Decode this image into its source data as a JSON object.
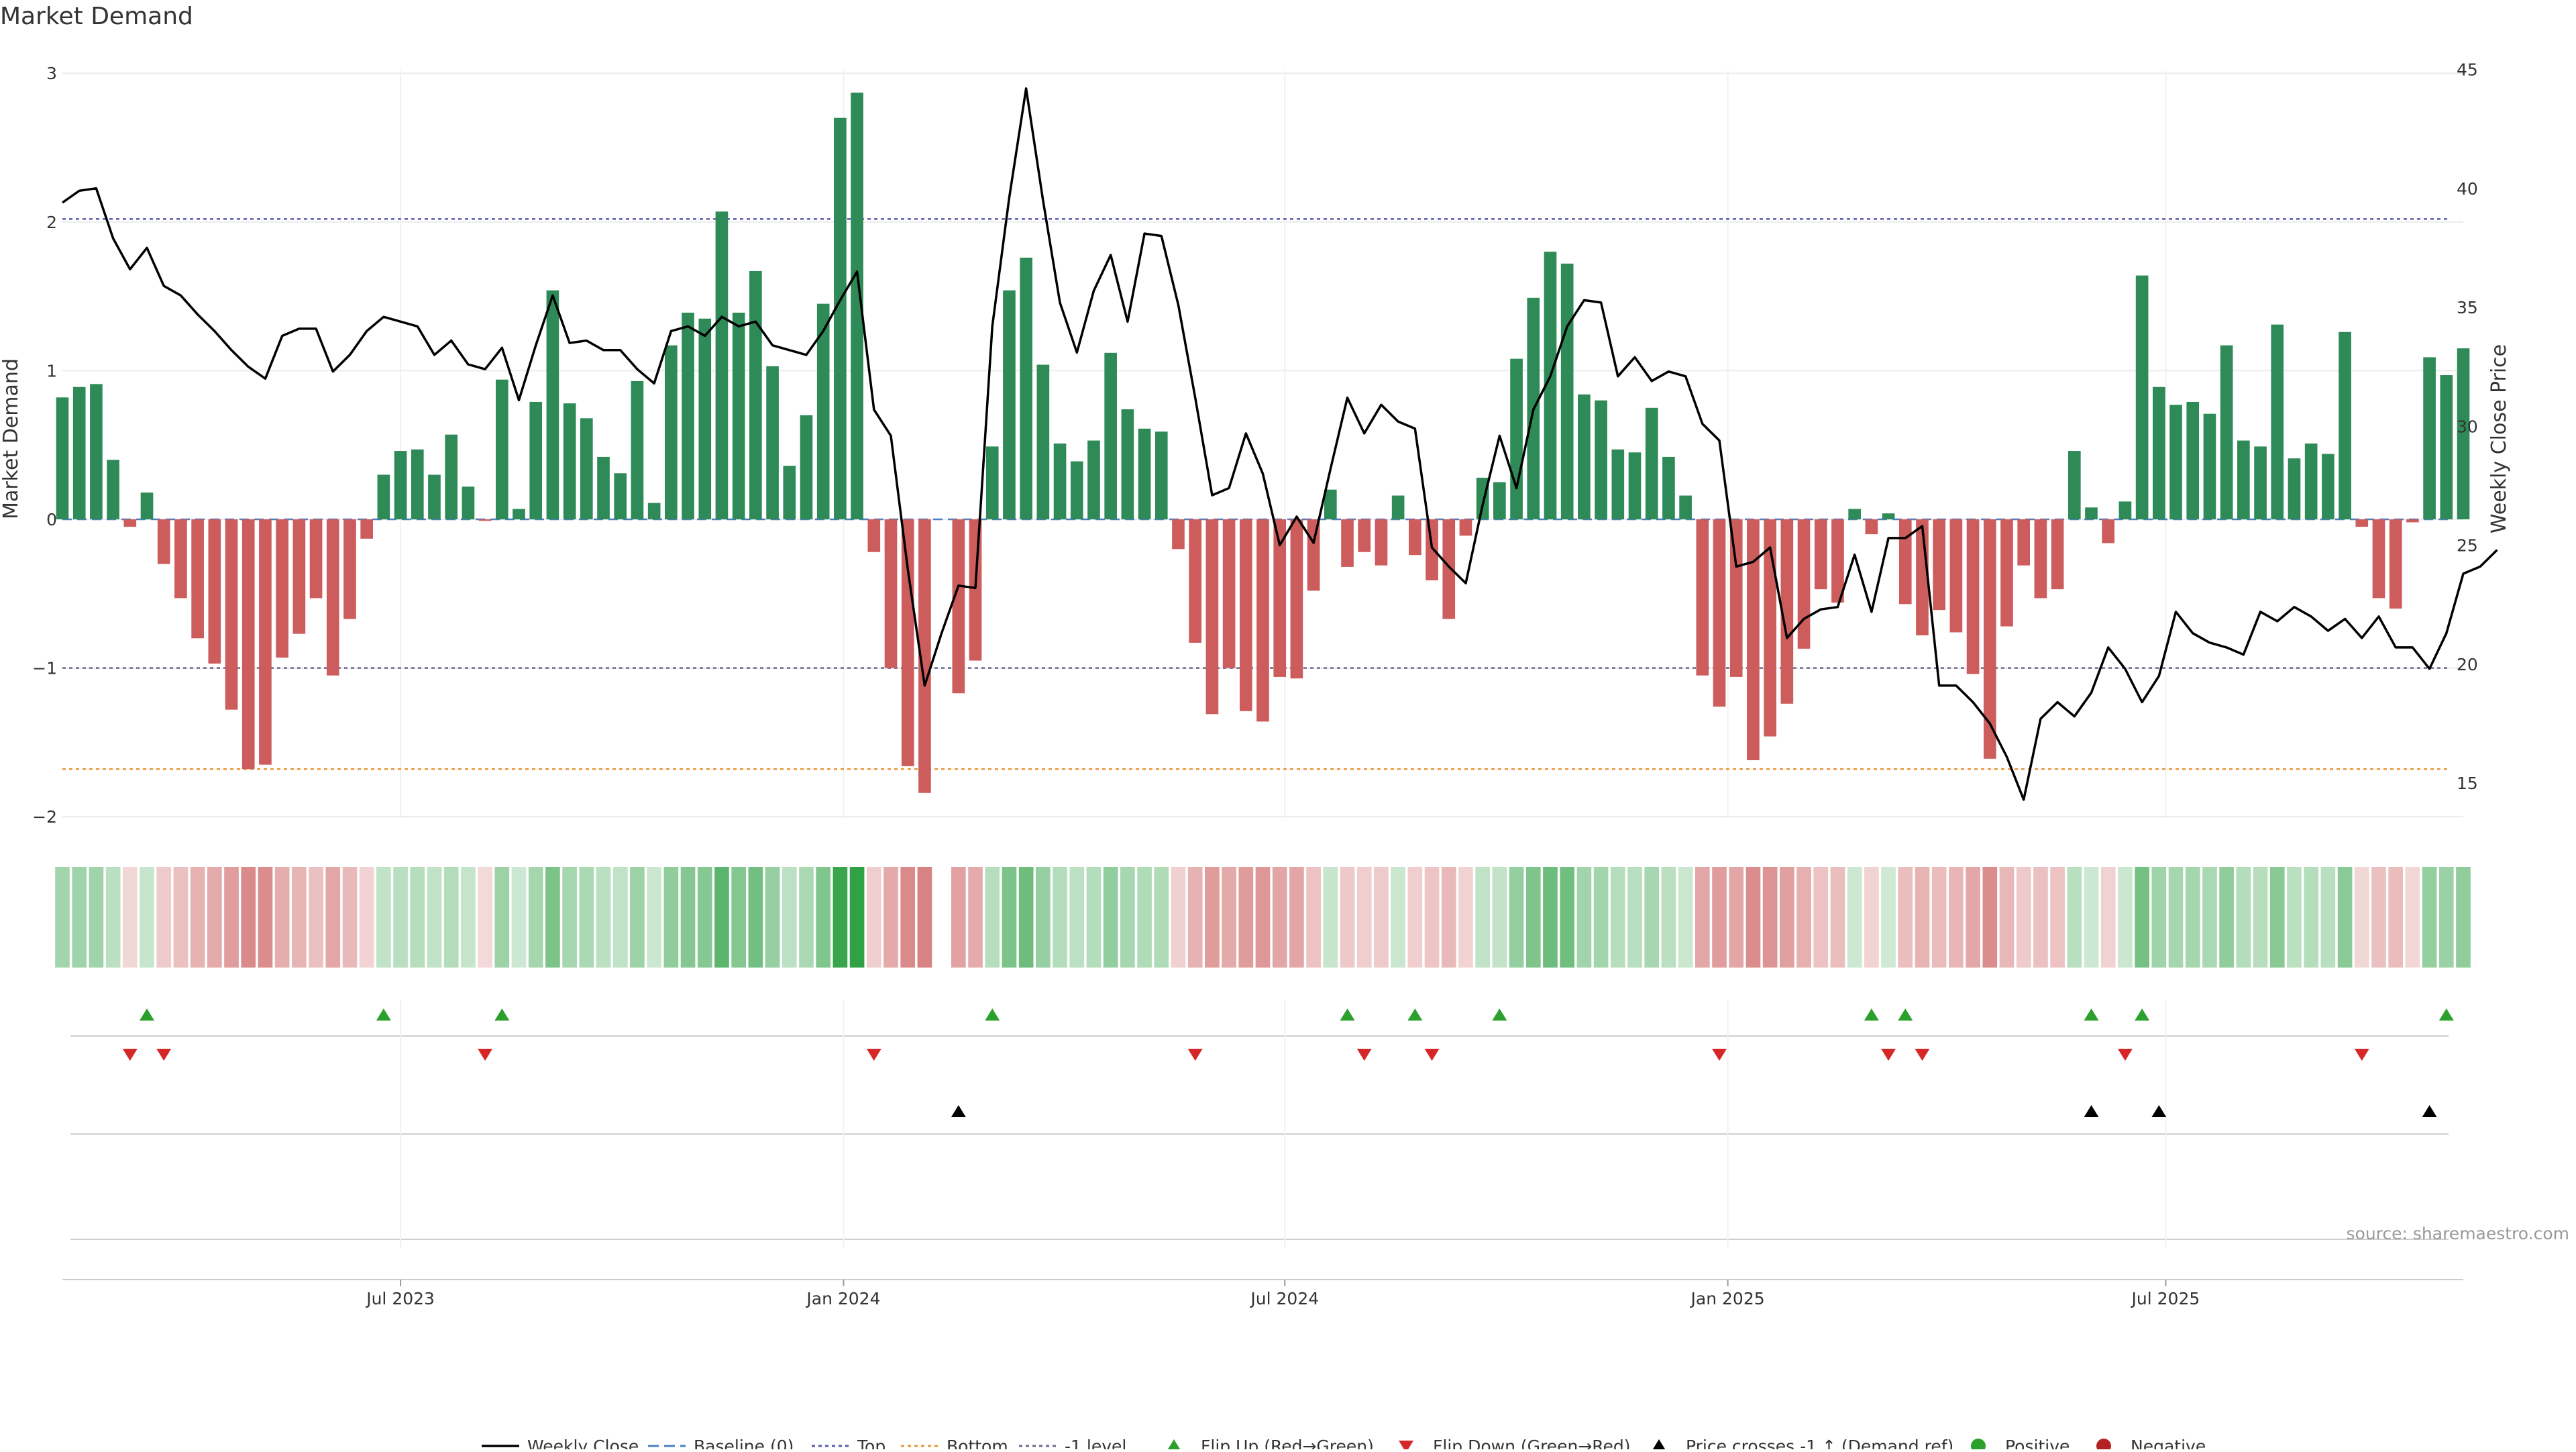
{
  "title": "Market Demand",
  "source": "source: sharemaestro.com",
  "colors": {
    "pos_bar": "#2e8b57",
    "neg_bar": "#cd5c5c",
    "close_line": "#000000",
    "top_line": "#5a5ab4",
    "bottom_line": "#e8953a",
    "minus1_line": "#6a6a90",
    "baseline": "#4a7fc1",
    "flip_up": "#2ca02c",
    "flip_down": "#d62728",
    "cross": "#000000",
    "positive": "#2ca02c",
    "negative": "#b22222"
  },
  "chart_data": {
    "type": "bar",
    "title": "Market Demand",
    "ylabel": "Market Demand",
    "y2label": "Weekly Close Price",
    "ylim": [
      -2,
      3
    ],
    "y2lim": [
      15,
      45
    ],
    "yticks": [
      -2,
      -1,
      0,
      1,
      2,
      3
    ],
    "y2ticks": [
      15,
      20,
      25,
      30,
      35,
      40,
      45
    ],
    "yticklabels": [
      "−2",
      "−1",
      "0",
      "1",
      "2",
      "3"
    ],
    "y2ticklabels": [
      "15",
      "20",
      "25",
      "30",
      "35",
      "40",
      "45"
    ],
    "top_level": 2.02,
    "bottom_level": -1.68,
    "minus1_level": -1,
    "x_ticks": [
      {
        "label": "Jul 2023",
        "week": 20
      },
      {
        "label": "Jan 2024",
        "week": 46.2
      },
      {
        "label": "Jul 2024",
        "week": 72.3
      },
      {
        "label": "Jan 2025",
        "week": 98.5
      },
      {
        "label": "Jul 2025",
        "week": 124.4
      }
    ],
    "demand": [
      0.82,
      0.89,
      0.91,
      0.4,
      -0.05,
      0.18,
      -0.3,
      -0.53,
      -0.8,
      -0.97,
      -1.28,
      -1.68,
      -1.65,
      -0.93,
      -0.77,
      -0.53,
      -1.05,
      -0.67,
      -0.13,
      0.3,
      0.46,
      0.47,
      0.3,
      0.57,
      0.22,
      -0.01,
      0.94,
      0.07,
      0.79,
      1.54,
      0.78,
      0.68,
      0.42,
      0.31,
      0.93,
      0.11,
      1.17,
      1.39,
      1.35,
      2.07,
      1.39,
      1.67,
      1.03,
      0.36,
      0.7,
      1.45,
      2.7,
      2.87,
      -0.22,
      -1.0,
      -1.66,
      -1.84,
      0.0,
      -1.17,
      -0.95,
      0.49,
      1.54,
      1.76,
      1.04,
      0.51,
      0.39,
      0.53,
      1.12,
      0.74,
      0.61,
      0.59,
      -0.2,
      -0.83,
      -1.31,
      -1.0,
      -1.29,
      -1.36,
      -1.06,
      -1.07,
      -0.48,
      0.2,
      -0.32,
      -0.22,
      -0.31,
      0.16,
      -0.24,
      -0.41,
      -0.67,
      -0.11,
      0.28,
      0.25,
      1.08,
      1.49,
      1.8,
      1.72,
      0.84,
      0.8,
      0.47,
      0.45,
      0.75,
      0.42,
      0.16,
      -1.05,
      -1.26,
      -1.06,
      -1.62,
      -1.46,
      -1.24,
      -0.87,
      -0.47,
      -0.56,
      0.07,
      -0.1,
      0.04,
      -0.57,
      -0.78,
      -0.61,
      -0.76,
      -1.04,
      -1.61,
      -0.72,
      -0.31,
      -0.53,
      -0.47,
      0.46,
      0.08,
      -0.16,
      0.12,
      1.64,
      0.89,
      0.77,
      0.79,
      0.71,
      1.17,
      0.53,
      0.49,
      1.31,
      0.41,
      0.51,
      0.44,
      1.26,
      -0.05,
      -0.53,
      -0.6,
      -0.02,
      1.09,
      0.97,
      1.15
    ],
    "close": [
      39.4,
      39.9,
      40.0,
      37.9,
      36.6,
      37.5,
      35.9,
      35.5,
      34.7,
      34.0,
      33.2,
      32.5,
      32.0,
      33.8,
      34.1,
      34.1,
      32.3,
      33.0,
      34.0,
      34.6,
      34.4,
      34.2,
      33.0,
      33.6,
      32.6,
      32.4,
      33.3,
      31.1,
      33.4,
      35.5,
      33.5,
      33.6,
      33.2,
      33.2,
      32.4,
      31.8,
      34.0,
      34.2,
      33.8,
      34.6,
      34.2,
      34.4,
      33.4,
      33.2,
      33.0,
      34.0,
      35.3,
      36.5,
      30.7,
      29.6,
      24.0,
      19.1,
      21.3,
      23.3,
      23.2,
      34.2,
      39.6,
      44.2,
      39.5,
      35.2,
      33.1,
      35.7,
      37.2,
      34.4,
      38.1,
      38.0,
      35.1,
      31.2,
      27.1,
      27.4,
      29.7,
      28.0,
      25.0,
      26.2,
      25.1,
      28.2,
      31.2,
      29.7,
      30.9,
      30.2,
      29.9,
      24.9,
      24.1,
      23.4,
      26.7,
      29.6,
      27.4,
      30.7,
      32.1,
      34.2,
      35.3,
      35.2,
      32.1,
      32.9,
      31.9,
      32.3,
      32.1,
      30.1,
      29.4,
      24.1,
      24.3,
      24.9,
      21.1,
      21.9,
      22.3,
      22.4,
      24.6,
      22.2,
      25.3,
      25.3,
      25.8,
      19.1,
      19.1,
      18.4,
      17.5,
      16.1,
      14.3,
      17.7,
      18.4,
      17.8,
      18.8,
      20.7,
      19.8,
      18.4,
      19.5,
      22.2,
      21.3,
      20.9,
      20.7,
      20.4,
      22.2,
      21.8,
      22.4,
      22.0,
      21.4,
      21.9,
      21.1,
      22.0,
      20.7,
      20.7,
      19.8,
      21.3,
      23.8,
      24.1,
      24.8
    ],
    "heat_gap_weeks": [
      52
    ],
    "flip_up_weeks": [
      5,
      19,
      26,
      55,
      76,
      80,
      85,
      107,
      109,
      120,
      123,
      141
    ],
    "flip_down_weeks": [
      4,
      6,
      25,
      48,
      67,
      77,
      81,
      98,
      108,
      110,
      122,
      136
    ],
    "cross_weeks": [
      53,
      120,
      124,
      140
    ],
    "legend": [
      "Weekly Close",
      "Baseline (0)",
      "Top",
      "Bottom",
      "-1 level",
      "Flip Up (Red→Green)",
      "Flip Down (Green→Red)",
      "Price crosses -1 ↑ (Demand ref)",
      "Positive",
      "Negative"
    ]
  }
}
